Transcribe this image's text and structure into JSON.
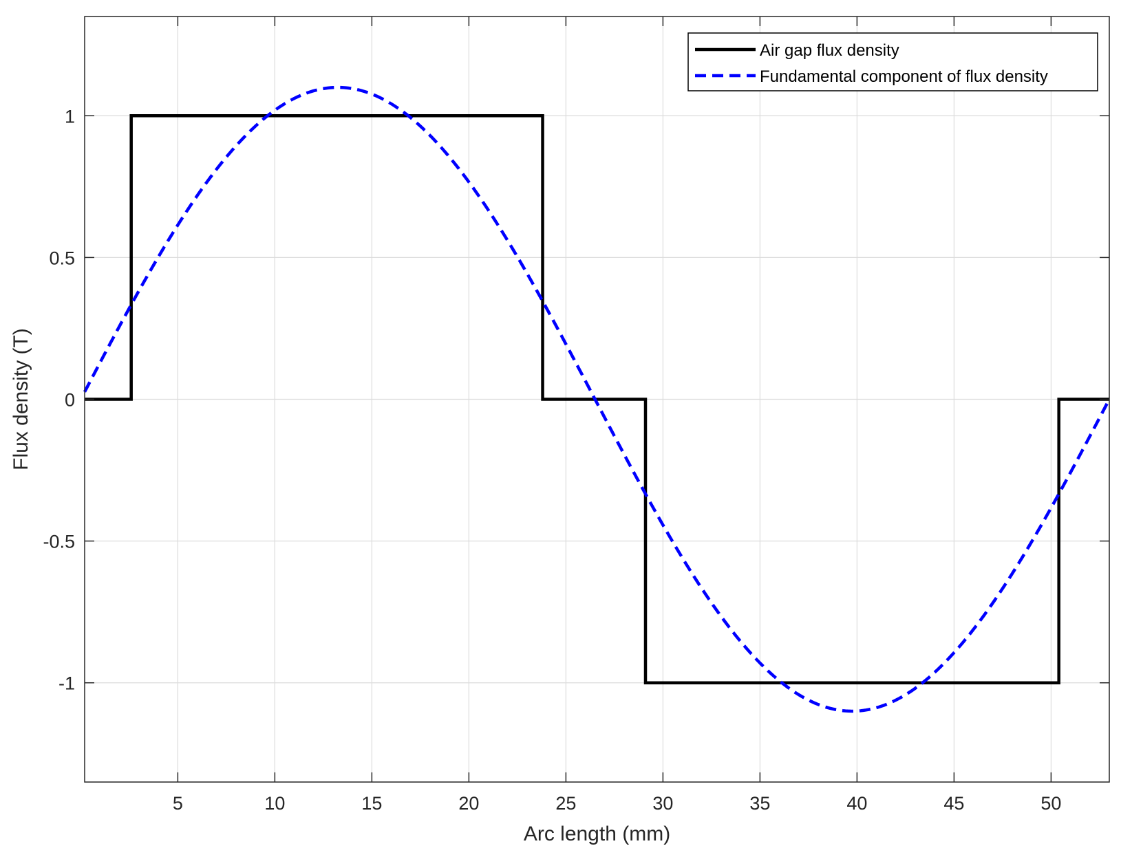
{
  "chart_data": {
    "type": "line",
    "xlabel": "Arc length (mm)",
    "ylabel": "Flux density (T)",
    "xlim": [
      0.2,
      53.0
    ],
    "ylim": [
      -1.35,
      1.35
    ],
    "xticks": [
      5,
      10,
      15,
      20,
      25,
      30,
      35,
      40,
      45,
      50
    ],
    "yticks": [
      -1,
      -0.5,
      0,
      0.5,
      1
    ],
    "xtick_labels": [
      "5",
      "10",
      "15",
      "20",
      "25",
      "30",
      "35",
      "40",
      "45",
      "50"
    ],
    "ytick_labels": [
      "-1",
      "-0.5",
      "0",
      "0.5",
      "1"
    ],
    "grid": true,
    "legend_position": "top-right",
    "series": [
      {
        "name": "Air gap flux density",
        "style": "solid",
        "color": "#000000",
        "x": [
          0.2,
          2.6,
          2.6,
          23.8,
          23.8,
          29.1,
          29.1,
          50.4,
          50.4,
          53.0
        ],
        "y": [
          0,
          0,
          1,
          1,
          0,
          0,
          -1,
          -1,
          0,
          0
        ]
      },
      {
        "name": "Fundamental component of flux density",
        "style": "dashed",
        "color": "#0000ff",
        "function": "sine",
        "amplitude": 1.1,
        "zero_crossings": [
          0.0,
          26.5,
          53.0
        ]
      }
    ]
  }
}
